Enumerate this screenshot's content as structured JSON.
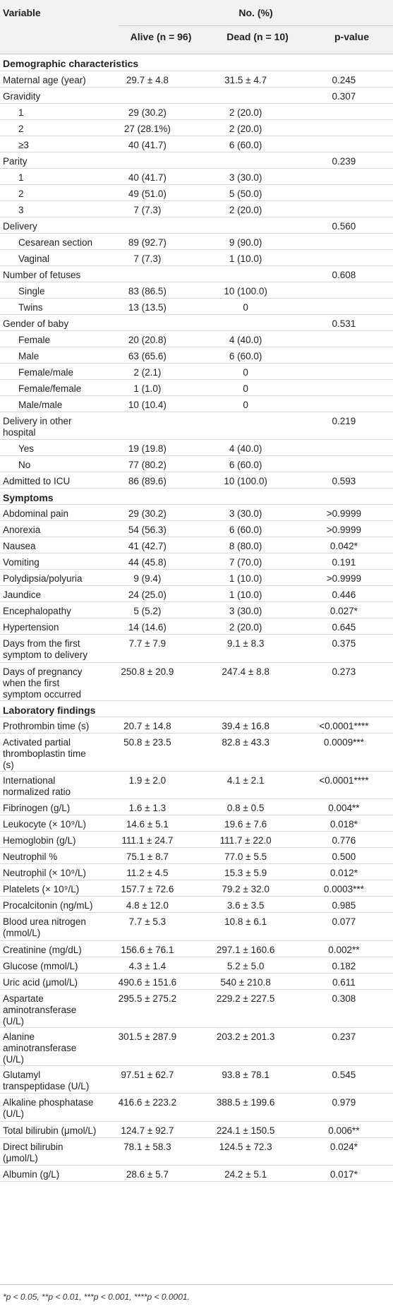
{
  "header": {
    "variable": "Variable",
    "group": "No. (%)",
    "alive": "Alive (n = 96)",
    "dead": "Dead (n = 10)",
    "p": "p-value"
  },
  "rows": [
    {
      "t": "section",
      "label": "Demographic characteristics"
    },
    {
      "label": "Maternal age (year)",
      "alive": "29.7 ± 4.8",
      "dead": "31.5 ± 4.7",
      "p": "0.245"
    },
    {
      "label": "Gravidity",
      "alive": "",
      "dead": "",
      "p": "0.307"
    },
    {
      "t": "sub",
      "label": "1",
      "alive": "29 (30.2)",
      "dead": "2 (20.0)",
      "p": ""
    },
    {
      "t": "sub",
      "label": "2",
      "alive": "27 (28.1%)",
      "dead": "2 (20.0)",
      "p": ""
    },
    {
      "t": "sub",
      "label": "≥3",
      "alive": "40 (41.7)",
      "dead": "6 (60.0)",
      "p": ""
    },
    {
      "label": "Parity",
      "alive": "",
      "dead": "",
      "p": "0.239"
    },
    {
      "t": "sub",
      "label": "1",
      "alive": "40 (41.7)",
      "dead": "3 (30.0)",
      "p": ""
    },
    {
      "t": "sub",
      "label": "2",
      "alive": "49 (51.0)",
      "dead": "5 (50.0)",
      "p": ""
    },
    {
      "t": "sub",
      "label": "3",
      "alive": "7 (7.3)",
      "dead": "2 (20.0)",
      "p": ""
    },
    {
      "label": "Delivery",
      "alive": "",
      "dead": "",
      "p": "0.560"
    },
    {
      "t": "sub",
      "label": "Cesarean section",
      "alive": "89 (92.7)",
      "dead": "9 (90.0)",
      "p": ""
    },
    {
      "t": "sub",
      "label": "Vaginal",
      "alive": "7 (7.3)",
      "dead": "1 (10.0)",
      "p": ""
    },
    {
      "label": "Number of fetuses",
      "alive": "",
      "dead": "",
      "p": "0.608"
    },
    {
      "t": "sub",
      "label": "Single",
      "alive": "83 (86.5)",
      "dead": "10 (100.0)",
      "p": ""
    },
    {
      "t": "sub",
      "label": "Twins",
      "alive": "13 (13.5)",
      "dead": "0",
      "p": ""
    },
    {
      "label": "Gender of baby",
      "alive": "",
      "dead": "",
      "p": "0.531"
    },
    {
      "t": "sub",
      "label": "Female",
      "alive": "20 (20.8)",
      "dead": "4 (40.0)",
      "p": ""
    },
    {
      "t": "sub",
      "label": "Male",
      "alive": "63 (65.6)",
      "dead": "6 (60.0)",
      "p": ""
    },
    {
      "t": "sub",
      "label": "Female/male",
      "alive": "2 (2.1)",
      "dead": "0",
      "p": ""
    },
    {
      "t": "sub",
      "label": "Female/female",
      "alive": "1 (1.0)",
      "dead": "0",
      "p": ""
    },
    {
      "t": "sub",
      "label": "Male/male",
      "alive": "10 (10.4)",
      "dead": "0",
      "p": ""
    },
    {
      "label": "Delivery in other hospital",
      "alive": "",
      "dead": "",
      "p": "0.219"
    },
    {
      "t": "sub",
      "label": "Yes",
      "alive": "19 (19.8)",
      "dead": "4 (40.0)",
      "p": ""
    },
    {
      "t": "sub",
      "label": "No",
      "alive": "77 (80.2)",
      "dead": "6 (60.0)",
      "p": ""
    },
    {
      "label": "Admitted to ICU",
      "alive": "86 (89.6)",
      "dead": "10 (100.0)",
      "p": "0.593"
    },
    {
      "t": "section",
      "label": "Symptoms"
    },
    {
      "label": "Abdominal pain",
      "alive": "29 (30.2)",
      "dead": "3 (30.0)",
      "p": ">0.9999"
    },
    {
      "label": "Anorexia",
      "alive": "54 (56.3)",
      "dead": "6 (60.0)",
      "p": ">0.9999"
    },
    {
      "label": "Nausea",
      "alive": "41 (42.7)",
      "dead": "8 (80.0)",
      "p": "0.042*"
    },
    {
      "label": "Vomiting",
      "alive": "44 (45.8)",
      "dead": "7 (70.0)",
      "p": "0.191"
    },
    {
      "label": "Polydipsia/polyuria",
      "alive": "9 (9.4)",
      "dead": "1 (10.0)",
      "p": ">0.9999"
    },
    {
      "label": "Jaundice",
      "alive": "24 (25.0)",
      "dead": "1 (10.0)",
      "p": "0.446"
    },
    {
      "label": "Encephalopathy",
      "alive": "5 (5.2)",
      "dead": "3 (30.0)",
      "p": "0.027*"
    },
    {
      "label": "Hypertension",
      "alive": "14 (14.6)",
      "dead": "2 (20.0)",
      "p": "0.645"
    },
    {
      "label": "Days from the first symptom to delivery",
      "alive": "7.7 ± 7.9",
      "dead": "9.1 ± 8.3",
      "p": "0.375"
    },
    {
      "label": "Days of pregnancy when the first symptom occurred",
      "alive": "250.8 ± 20.9",
      "dead": "247.4 ± 8.8",
      "p": "0.273"
    },
    {
      "t": "section",
      "label": "Laboratory findings"
    },
    {
      "label": "Prothrombin time (s)",
      "alive": "20.7 ± 14.8",
      "dead": "39.4 ± 16.8",
      "p": "<0.0001****"
    },
    {
      "label": "Activated partial thromboplastin time (s)",
      "alive": "50.8 ± 23.5",
      "dead": "82.8 ± 43.3",
      "p": "0.0009***"
    },
    {
      "label": "International normalized ratio",
      "alive": "1.9 ± 2.0",
      "dead": "4.1 ± 2.1",
      "p": "<0.0001****"
    },
    {
      "label": "Fibrinogen (g/L)",
      "alive": "1.6 ± 1.3",
      "dead": "0.8 ± 0.5",
      "p": "0.004**"
    },
    {
      "label": "Leukocyte (× 10⁹/L)",
      "alive": "14.6 ± 5.1",
      "dead": "19.6 ± 7.6",
      "p": "0.018*"
    },
    {
      "label": "Hemoglobin (g/L)",
      "alive": "111.1 ± 24.7",
      "dead": "111.7 ± 22.0",
      "p": "0.776"
    },
    {
      "label": "Neutrophil %",
      "alive": "75.1 ± 8.7",
      "dead": "77.0 ± 5.5",
      "p": "0.500"
    },
    {
      "label": "Neutrophil (× 10⁹/L)",
      "alive": "11.2 ± 4.5",
      "dead": "15.3 ± 5.9",
      "p": "0.012*"
    },
    {
      "label": "Platelets (× 10⁹/L)",
      "alive": "157.7 ± 72.6",
      "dead": "79.2 ± 32.0",
      "p": "0.0003***"
    },
    {
      "label": "Procalcitonin (ng/mL)",
      "alive": "4.8 ± 12.0",
      "dead": "3.6 ± 3.5",
      "p": "0.985"
    },
    {
      "label": "Blood urea nitrogen (mmol/L)",
      "alive": "7.7 ± 5.3",
      "dead": "10.8 ± 6.1",
      "p": "0.077"
    },
    {
      "label": "Creatinine (mg/dL)",
      "alive": "156.6 ± 76.1",
      "dead": "297.1 ± 160.6",
      "p": "0.002**"
    },
    {
      "label": "Glucose (mmol/L)",
      "alive": "4.3 ± 1.4",
      "dead": "5.2 ± 5.0",
      "p": "0.182"
    },
    {
      "label": "Uric acid (μmol/L)",
      "alive": "490.6 ± 151.6",
      "dead": "540 ± 210.8",
      "p": "0.611"
    },
    {
      "label": "Aspartate aminotransferase (U/L)",
      "alive": "295.5 ± 275.2",
      "dead": "229.2 ± 227.5",
      "p": "0.308"
    },
    {
      "label": "Alanine aminotransferase (U/L)",
      "alive": "301.5 ± 287.9",
      "dead": "203.2 ± 201.3",
      "p": "0.237"
    },
    {
      "label": "Glutamyl transpeptidase (U/L)",
      "alive": "97.51 ± 62.7",
      "dead": "93.8 ± 78.1",
      "p": "0.545"
    },
    {
      "label": "Alkaline phosphatase (U/L)",
      "alive": "416.6 ± 223.2",
      "dead": "388.5 ± 199.6",
      "p": "0.979"
    },
    {
      "label": "Total bilirubin (μmol/L)",
      "alive": "124.7 ± 92.7",
      "dead": "224.1 ± 150.5",
      "p": "0.006**"
    },
    {
      "label": "Direct bilirubin (μmol/L)",
      "alive": "78.1 ± 58.3",
      "dead": "124.5 ± 72.3",
      "p": "0.024*"
    },
    {
      "label": "Albumin (g/L)",
      "alive": "28.6 ± 5.7",
      "dead": "24.2 ± 5.1",
      "p": "0.017*"
    }
  ],
  "footnote": "*p < 0.05, **p < 0.01, ***p < 0.001, ****p < 0.0001."
}
